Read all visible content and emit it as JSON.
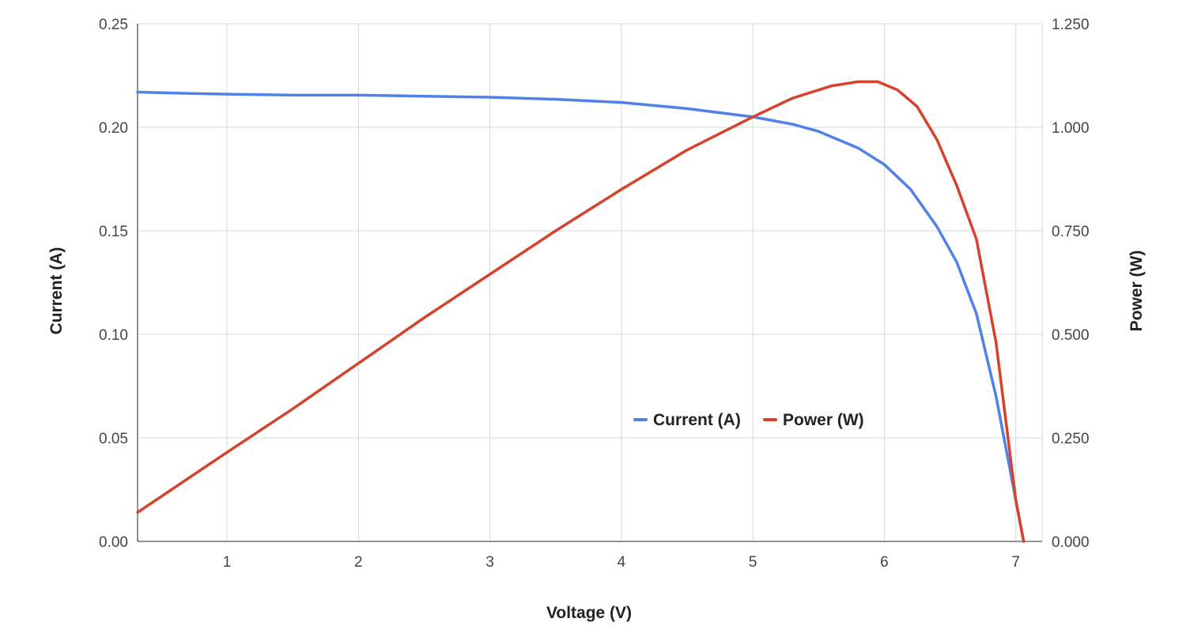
{
  "chart_data": {
    "type": "line",
    "xlabel": "Voltage (V)",
    "ylabel_left": "Current (A)",
    "ylabel_right": "Power (W)",
    "xlim": [
      0.32,
      7.2
    ],
    "ylim_left": [
      0,
      0.25
    ],
    "ylim_right": [
      0,
      1.25
    ],
    "x_ticks": [
      "1",
      "2",
      "3",
      "4",
      "5",
      "6",
      "7"
    ],
    "y_left_ticks": [
      "0.00",
      "0.05",
      "0.10",
      "0.15",
      "0.20",
      "0.25"
    ],
    "y_right_ticks": [
      "0.000",
      "0.250",
      "0.500",
      "0.750",
      "1.000",
      "1.250"
    ],
    "grid": true,
    "legend_position": "center-right inside plot",
    "series": [
      {
        "name": "Current (A)",
        "axis": "left",
        "color": "#4f81e8",
        "x": [
          0.32,
          0.6,
          1.0,
          1.5,
          2.0,
          2.5,
          3.0,
          3.5,
          4.0,
          4.5,
          5.0,
          5.3,
          5.5,
          5.8,
          6.0,
          6.2,
          6.4,
          6.55,
          6.7,
          6.85,
          7.0,
          7.06
        ],
        "y": [
          0.217,
          0.2165,
          0.216,
          0.2155,
          0.2155,
          0.215,
          0.2145,
          0.2135,
          0.212,
          0.209,
          0.205,
          0.2015,
          0.198,
          0.19,
          0.182,
          0.17,
          0.152,
          0.135,
          0.11,
          0.07,
          0.02,
          0.0
        ]
      },
      {
        "name": "Power (W)",
        "axis": "right",
        "color": "#d5432d",
        "x": [
          0.32,
          1.0,
          1.5,
          2.0,
          2.5,
          3.0,
          3.5,
          4.0,
          4.5,
          5.0,
          5.3,
          5.6,
          5.8,
          5.95,
          6.1,
          6.25,
          6.4,
          6.55,
          6.7,
          6.85,
          7.0,
          7.06
        ],
        "y": [
          0.07,
          0.215,
          0.32,
          0.43,
          0.54,
          0.645,
          0.75,
          0.85,
          0.945,
          1.025,
          1.07,
          1.1,
          1.11,
          1.11,
          1.09,
          1.05,
          0.97,
          0.86,
          0.73,
          0.48,
          0.1,
          0.0
        ]
      }
    ]
  }
}
